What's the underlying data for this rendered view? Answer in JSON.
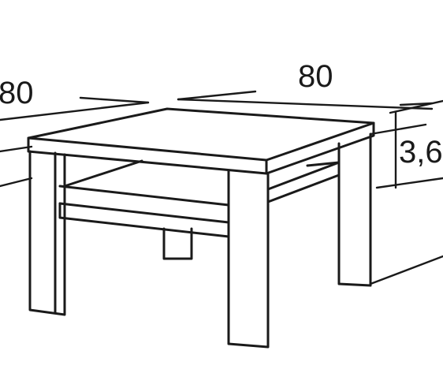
{
  "diagram": {
    "dimensions": {
      "width_label": "80",
      "depth_label": "80",
      "height_label": "3,6"
    },
    "colors": {
      "line": "#1a1a1a",
      "background": "#ffffff"
    }
  }
}
